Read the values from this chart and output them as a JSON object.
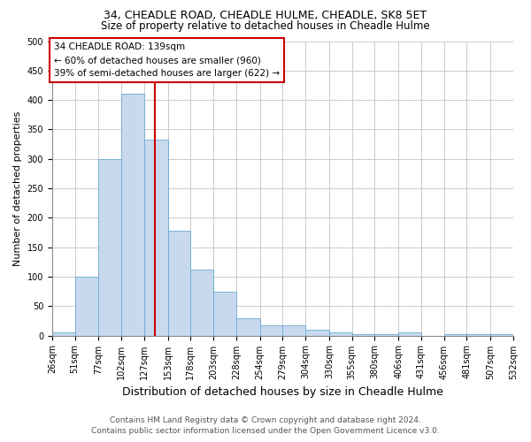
{
  "title1": "34, CHEADLE ROAD, CHEADLE HULME, CHEADLE, SK8 5ET",
  "title2": "Size of property relative to detached houses in Cheadle Hulme",
  "xlabel": "Distribution of detached houses by size in Cheadle Hulme",
  "ylabel": "Number of detached properties",
  "footnote1": "Contains HM Land Registry data © Crown copyright and database right 2024.",
  "footnote2": "Contains public sector information licensed under the Open Government Licence v3.0.",
  "bin_edges": [
    26,
    51,
    77,
    102,
    127,
    153,
    178,
    203,
    228,
    254,
    279,
    304,
    330,
    355,
    380,
    406,
    431,
    456,
    481,
    507,
    532
  ],
  "bar_heights": [
    5,
    100,
    300,
    410,
    333,
    178,
    112,
    75,
    30,
    17,
    17,
    10,
    5,
    3,
    3,
    5,
    0,
    3,
    3,
    3
  ],
  "bar_color": "#c8d9ee",
  "bar_edge_color": "#6aaad4",
  "vline_x": 139,
  "vline_color": "#cc0000",
  "annotation_box_text": "34 CHEADLE ROAD: 139sqm\n← 60% of detached houses are smaller (960)\n39% of semi-detached houses are larger (622) →",
  "annotation_box_color": "#cc0000",
  "annotation_text_color": "#000000",
  "ylim": [
    0,
    500
  ],
  "yticks": [
    0,
    50,
    100,
    150,
    200,
    250,
    300,
    350,
    400,
    450,
    500
  ],
  "grid_color": "#cccccc",
  "bg_color": "#ffffff",
  "title1_fontsize": 9,
  "title2_fontsize": 8.5,
  "xlabel_fontsize": 9,
  "ylabel_fontsize": 8,
  "tick_fontsize": 7,
  "annot_fontsize": 7.5,
  "footnote_fontsize": 6.5
}
